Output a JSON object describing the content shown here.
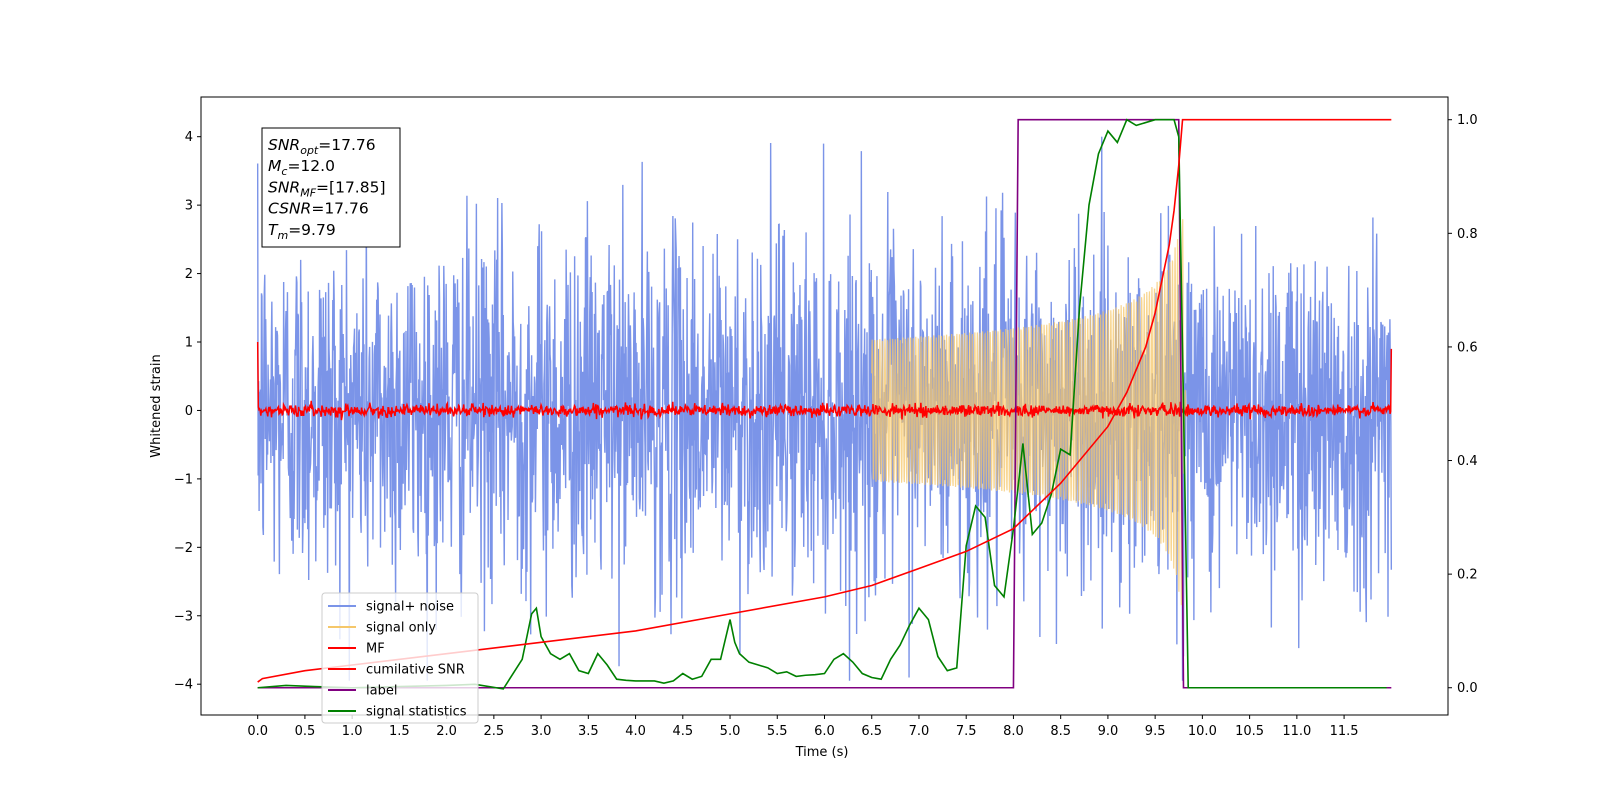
{
  "chart_data": {
    "type": "line",
    "xlabel": "Time (s)",
    "ylabel": "Whitened strain",
    "xlim": [
      -0.6,
      12.6
    ],
    "ylim": [
      -4.45,
      4.58
    ],
    "ylim_right": [
      -0.048,
      1.04
    ],
    "x_ticks": [
      "0.0",
      "0.5",
      "1.0",
      "1.5",
      "2.0",
      "2.5",
      "3.0",
      "3.5",
      "4.0",
      "4.5",
      "5.0",
      "5.5",
      "6.0",
      "6.5",
      "7.0",
      "7.5",
      "8.0",
      "8.5",
      "9.0",
      "9.5",
      "10.0",
      "10.5",
      "11.0",
      "11.5"
    ],
    "y_ticks_left": [
      "4",
      "3",
      "2",
      "1",
      "0",
      "−1",
      "−2",
      "−3",
      "−4"
    ],
    "y_ticks_right": [
      "1.0",
      "0.8",
      "0.6",
      "0.4",
      "0.2",
      "0.0"
    ],
    "annotation": {
      "lines": [
        {
          "sym": "SNR",
          "sub": "opt",
          "val": "=17.76"
        },
        {
          "sym": "M",
          "sub": "c",
          "val": "=12.0"
        },
        {
          "sym": "SNR",
          "sub": "MF",
          "val": "=[17.85]"
        },
        {
          "sym": "CSNR",
          "sub": "",
          "val": "=17.76"
        },
        {
          "sym": "T",
          "sub": "m",
          "val": "=9.79"
        }
      ]
    },
    "legend_position": "lower-left",
    "series": [
      {
        "name": "signal+ noise",
        "color": "#7b94e8",
        "axis": "left",
        "x_range": [
          0.0,
          12.0
        ],
        "approx_amplitude": 1.3,
        "peak_values": [
          4.0,
          -3.95
        ]
      },
      {
        "name": "signal only",
        "color": "#f5c76a",
        "axis": "left",
        "chirp": {
          "start": 6.5,
          "merger": 9.79,
          "peak_amplitude": 3.3,
          "decay_end": 9.83
        }
      },
      {
        "name": "MF",
        "color": "#ff0000",
        "axis": "left",
        "x_range": [
          0.0,
          12.0
        ],
        "noise_amplitude": 0.08,
        "edge_values": [
          1.0,
          0.9
        ]
      },
      {
        "name": "cumilative SNR",
        "color": "#ff0000",
        "axis": "right",
        "x": [
          0.0,
          0.05,
          0.5,
          1.0,
          2.0,
          3.0,
          4.0,
          5.0,
          6.0,
          6.5,
          7.0,
          7.5,
          8.0,
          8.5,
          9.0,
          9.2,
          9.4,
          9.5,
          9.6,
          9.65,
          9.7,
          9.75,
          9.79,
          9.8,
          12.0
        ],
        "values": [
          0.01,
          0.016,
          0.03,
          0.04,
          0.06,
          0.08,
          0.1,
          0.13,
          0.16,
          0.18,
          0.21,
          0.24,
          0.28,
          0.36,
          0.46,
          0.52,
          0.6,
          0.66,
          0.74,
          0.78,
          0.84,
          0.92,
          1.0,
          1.0,
          1.0
        ]
      },
      {
        "name": "label",
        "color": "#800080",
        "axis": "right",
        "x": [
          0.0,
          8.0,
          8.05,
          9.75,
          9.8,
          12.0
        ],
        "values": [
          0.0,
          0.0,
          1.0,
          1.0,
          0.0,
          0.0
        ]
      },
      {
        "name": "signal statistics",
        "color": "#008000",
        "axis": "right",
        "x": [
          0.0,
          0.3,
          0.6,
          1.0,
          1.5,
          2.0,
          2.3,
          2.6,
          2.8,
          2.9,
          2.95,
          3.0,
          3.1,
          3.2,
          3.3,
          3.4,
          3.5,
          3.6,
          3.7,
          3.8,
          3.9,
          4.0,
          4.2,
          4.3,
          4.4,
          4.5,
          4.6,
          4.7,
          4.8,
          4.9,
          5.0,
          5.05,
          5.1,
          5.2,
          5.3,
          5.4,
          5.5,
          5.6,
          5.7,
          5.8,
          5.9,
          6.0,
          6.1,
          6.2,
          6.3,
          6.4,
          6.5,
          6.6,
          6.7,
          6.8,
          6.9,
          7.0,
          7.05,
          7.1,
          7.2,
          7.3,
          7.4,
          7.5,
          7.6,
          7.7,
          7.8,
          7.9,
          8.0,
          8.1,
          8.2,
          8.3,
          8.4,
          8.5,
          8.6,
          8.7,
          8.8,
          8.9,
          9.0,
          9.1,
          9.2,
          9.3,
          9.5,
          9.6,
          9.7,
          9.75,
          9.8,
          9.85,
          9.9,
          10.5,
          11.0,
          11.5,
          11.95
        ],
        "values": [
          0.0,
          0.004,
          0.002,
          0.0,
          0.002,
          0.004,
          0.006,
          -0.002,
          0.05,
          0.13,
          0.14,
          0.09,
          0.06,
          0.05,
          0.06,
          0.03,
          0.025,
          0.06,
          0.04,
          0.015,
          0.013,
          0.012,
          0.012,
          0.008,
          0.012,
          0.025,
          0.015,
          0.02,
          0.05,
          0.05,
          0.12,
          0.08,
          0.06,
          0.045,
          0.04,
          0.035,
          0.025,
          0.028,
          0.02,
          0.022,
          0.023,
          0.025,
          0.05,
          0.06,
          0.045,
          0.025,
          0.018,
          0.015,
          0.05,
          0.075,
          0.11,
          0.14,
          0.13,
          0.12,
          0.055,
          0.03,
          0.035,
          0.25,
          0.32,
          0.3,
          0.18,
          0.16,
          0.28,
          0.43,
          0.27,
          0.29,
          0.34,
          0.42,
          0.41,
          0.67,
          0.85,
          0.94,
          0.98,
          0.96,
          1.0,
          0.99,
          1.0,
          1.0,
          1.0,
          0.97,
          0.5,
          0.0,
          0.0,
          0.0,
          0.0,
          0.0,
          0.0
        ]
      }
    ]
  }
}
